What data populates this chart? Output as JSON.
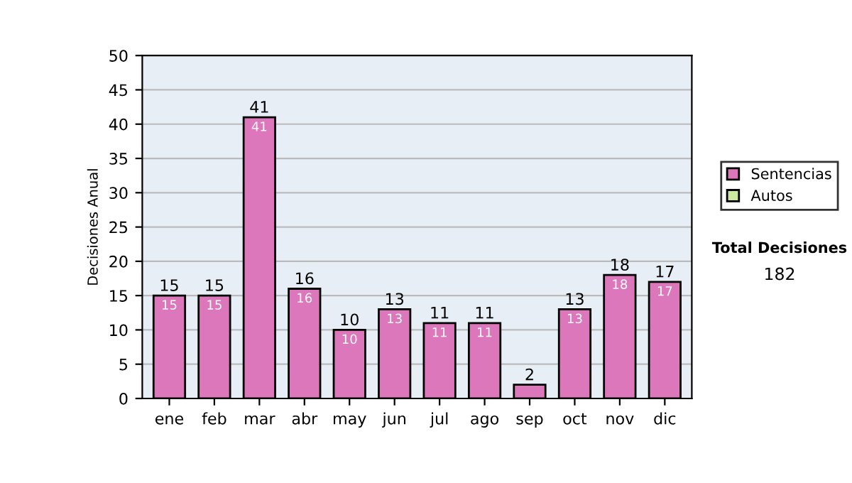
{
  "chart_data": {
    "type": "bar",
    "stacked": true,
    "ylabel": "Decisiones Anual",
    "categories": [
      "ene",
      "feb",
      "mar",
      "abr",
      "may",
      "jun",
      "jul",
      "ago",
      "sep",
      "oct",
      "nov",
      "dic"
    ],
    "series": [
      {
        "name": "Sentencias",
        "color": "#dd77bb",
        "values": [
          15,
          15,
          41,
          16,
          10,
          13,
          11,
          11,
          2,
          13,
          18,
          17
        ],
        "value_labels": [
          "15",
          "15",
          "41",
          "16",
          "10",
          "13",
          "11",
          "11",
          null,
          "13",
          "18",
          "17"
        ]
      },
      {
        "name": "Autos",
        "color": "#cce8a0",
        "values": [
          null,
          null,
          null,
          null,
          null,
          null,
          null,
          null,
          null,
          null,
          null,
          null
        ]
      }
    ],
    "totals": [
      "15",
      "15",
      "41",
      "16",
      "10",
      "13",
      "11",
      "11",
      "2",
      "13",
      "18",
      "17"
    ],
    "ylim": [
      0,
      50
    ],
    "yticks": [
      0,
      5,
      10,
      15,
      20,
      25,
      30,
      35,
      40,
      45,
      50
    ],
    "grid": "y",
    "legend": "right",
    "annotations": [
      "Total Decisiones",
      "182"
    ]
  }
}
